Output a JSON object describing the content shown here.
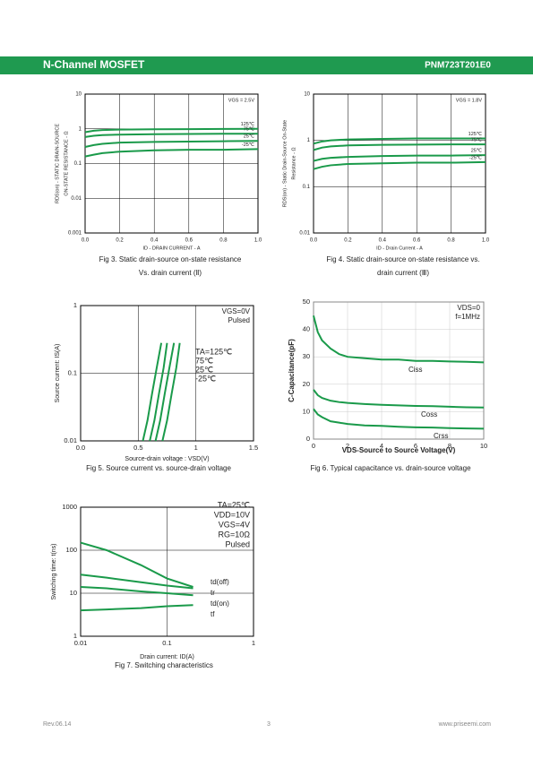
{
  "header": {
    "left": "N-Channel MOSFET",
    "right": "PNM723T201E0"
  },
  "footer": {
    "left": "Rev.06.14",
    "center": "3",
    "right": "www.priseemi.com"
  },
  "chart_data": [
    {
      "type": "line",
      "ylog": true,
      "grid": true,
      "color": "#1a9a4a",
      "caption": [
        "Fig 3. Static drain-source on-state resistance",
        "Vs. drain current (Ⅱ)"
      ],
      "xlabel": "ID - DRAIN CURRENT - A",
      "ylabel": [
        "RDS(on) - STATIC DRAIN-SOURCE",
        "ON-STATE RESISTANCE - Ω"
      ],
      "annotations": [
        "VGS = 2.5V"
      ],
      "xlim": [
        0,
        1
      ],
      "ylim": [
        0.001,
        10
      ],
      "xticks": [
        {
          "value": 0,
          "label": "0.0"
        },
        0.2,
        0.4,
        0.6,
        0.8,
        {
          "value": 1,
          "label": "1.0"
        }
      ],
      "yticks": [
        0.001,
        0.01,
        0.1,
        1,
        10
      ],
      "x": [
        0,
        0.05,
        0.1,
        0.2,
        0.4,
        0.6,
        0.8,
        1
      ],
      "series": [
        {
          "name": "125℃",
          "values": [
            0.8,
            0.88,
            0.92,
            0.95,
            0.97,
            0.98,
            0.99,
            1.0
          ]
        },
        {
          "name": "75℃",
          "values": [
            0.58,
            0.63,
            0.66,
            0.68,
            0.7,
            0.71,
            0.72,
            0.72
          ]
        },
        {
          "name": "25℃",
          "values": [
            0.3,
            0.34,
            0.37,
            0.4,
            0.42,
            0.43,
            0.44,
            0.45
          ]
        },
        {
          "name": "-25℃",
          "values": [
            0.16,
            0.18,
            0.2,
            0.22,
            0.24,
            0.25,
            0.25,
            0.26
          ]
        }
      ]
    },
    {
      "type": "line",
      "ylog": true,
      "grid": true,
      "color": "#1a9a4a",
      "caption": [
        "Fig 4. Static drain-source on-state resistance vs.",
        "drain current (Ⅲ)"
      ],
      "xlabel": "ID - Drain Current - A",
      "ylabel": [
        "RDS(on) - Static Drain-Source On-State",
        "Resistance - Ω"
      ],
      "annotations": [
        "VGS = 1.8V"
      ],
      "xlim": [
        0,
        1
      ],
      "ylim": [
        0.01,
        10
      ],
      "xticks": [
        {
          "value": 0,
          "label": "0.0"
        },
        0.2,
        0.4,
        0.6,
        0.8,
        {
          "value": 1,
          "label": "1.0"
        }
      ],
      "yticks": [
        0.01,
        0.1,
        1,
        10
      ],
      "x": [
        0,
        0.05,
        0.1,
        0.2,
        0.4,
        0.6,
        0.8,
        1
      ],
      "series": [
        {
          "name": "125℃",
          "values": [
            0.85,
            0.95,
            1.0,
            1.05,
            1.08,
            1.1,
            1.1,
            1.1
          ]
        },
        {
          "name": "75℃",
          "values": [
            0.62,
            0.7,
            0.74,
            0.78,
            0.8,
            0.81,
            0.82,
            0.82
          ]
        },
        {
          "name": "25℃",
          "values": [
            0.36,
            0.4,
            0.42,
            0.44,
            0.46,
            0.47,
            0.47,
            0.48
          ]
        },
        {
          "name": "-25℃",
          "values": [
            0.24,
            0.27,
            0.29,
            0.31,
            0.32,
            0.33,
            0.33,
            0.34
          ]
        }
      ]
    },
    {
      "type": "line",
      "ylog": true,
      "grid": true,
      "color": "#1a9a4a",
      "caption": [
        "Fig 5. Source current vs. source-drain voltage"
      ],
      "xlabel": "Source-drain voltage : VSD(V)",
      "ylabel": [
        "Source current: IS(A)"
      ],
      "annotations": [
        "VGS=0V",
        "Pulsed"
      ],
      "xlim": [
        0,
        1.5
      ],
      "ylim": [
        0.01,
        1
      ],
      "xticks": [
        {
          "value": 0,
          "label": "0.0"
        },
        0.5,
        1,
        1.5
      ],
      "yticks": [
        0.01,
        0.1,
        1
      ],
      "series": [
        {
          "name": "TA=125℃",
          "x": [
            0.54,
            0.58,
            0.62,
            0.66,
            0.7
          ],
          "values": [
            0.01,
            0.02,
            0.05,
            0.12,
            0.28
          ]
        },
        {
          "name": "75℃",
          "x": [
            0.6,
            0.64,
            0.68,
            0.72,
            0.75
          ],
          "values": [
            0.01,
            0.02,
            0.05,
            0.12,
            0.28
          ]
        },
        {
          "name": "25℃",
          "x": [
            0.65,
            0.69,
            0.73,
            0.77,
            0.81
          ],
          "values": [
            0.01,
            0.02,
            0.05,
            0.12,
            0.28
          ]
        },
        {
          "name": "-25℃",
          "x": [
            0.71,
            0.75,
            0.79,
            0.83,
            0.86
          ],
          "values": [
            0.01,
            0.02,
            0.05,
            0.12,
            0.28
          ]
        }
      ]
    },
    {
      "type": "line",
      "ylog": false,
      "grid": true,
      "color": "#1a9a4a",
      "caption": [
        "Fig 6. Typical capacitance vs. drain-source voltage"
      ],
      "xlabel": "VDS-Source to Source Voltage(V)",
      "ylabel": [
        "C-Capacitance(pF)"
      ],
      "annotations": [
        "VDS=0",
        "f=1MHz"
      ],
      "xlim": [
        0,
        10
      ],
      "ylim": [
        0,
        50
      ],
      "xticks": [
        0,
        2,
        4,
        6,
        8,
        10
      ],
      "yticks": [
        0,
        10,
        20,
        30,
        40,
        50
      ],
      "x": [
        0,
        0.25,
        0.5,
        1,
        1.5,
        2,
        3,
        4,
        5,
        6,
        7,
        8,
        9,
        10
      ],
      "series": [
        {
          "name": "Ciss",
          "values": [
            45,
            39,
            36,
            33,
            31,
            30,
            29.5,
            29,
            29,
            28.5,
            28.5,
            28.3,
            28.2,
            28
          ]
        },
        {
          "name": "Coss",
          "values": [
            18,
            16,
            15,
            14,
            13.5,
            13.2,
            12.8,
            12.5,
            12.3,
            12.1,
            12,
            11.8,
            11.6,
            11.5
          ]
        },
        {
          "name": "Crss",
          "values": [
            11,
            9,
            8,
            6.5,
            6,
            5.5,
            5,
            4.8,
            4.5,
            4.3,
            4.2,
            4,
            3.9,
            3.8
          ]
        }
      ]
    },
    {
      "type": "line",
      "ylog": true,
      "xlog": true,
      "grid": true,
      "color": "#1a9a4a",
      "caption": [
        "Fig 7. Switching characteristics"
      ],
      "xlabel": "Drain current: ID(A)",
      "ylabel": [
        "Switching time: t(ns)"
      ],
      "annotations": [
        "TA=25℃",
        "VDD=10V",
        "VGS=4V",
        "RG=10Ω",
        "Pulsed"
      ],
      "xlim": [
        0.01,
        1
      ],
      "ylim": [
        1,
        1000
      ],
      "xticks": [
        0.01,
        0.1,
        1
      ],
      "yticks": [
        1,
        10,
        100,
        1000
      ],
      "x": [
        0.01,
        0.02,
        0.05,
        0.1,
        0.2
      ],
      "series": [
        {
          "name": "td(off)",
          "values": [
            150,
            100,
            45,
            22,
            14
          ]
        },
        {
          "name": "tr",
          "values": [
            14,
            13,
            11,
            10,
            9
          ]
        },
        {
          "name": "td(on)",
          "values": [
            27,
            23,
            18,
            15,
            13
          ]
        },
        {
          "name": "tf",
          "values": [
            4,
            4.2,
            4.5,
            5,
            5.3
          ]
        }
      ]
    }
  ]
}
